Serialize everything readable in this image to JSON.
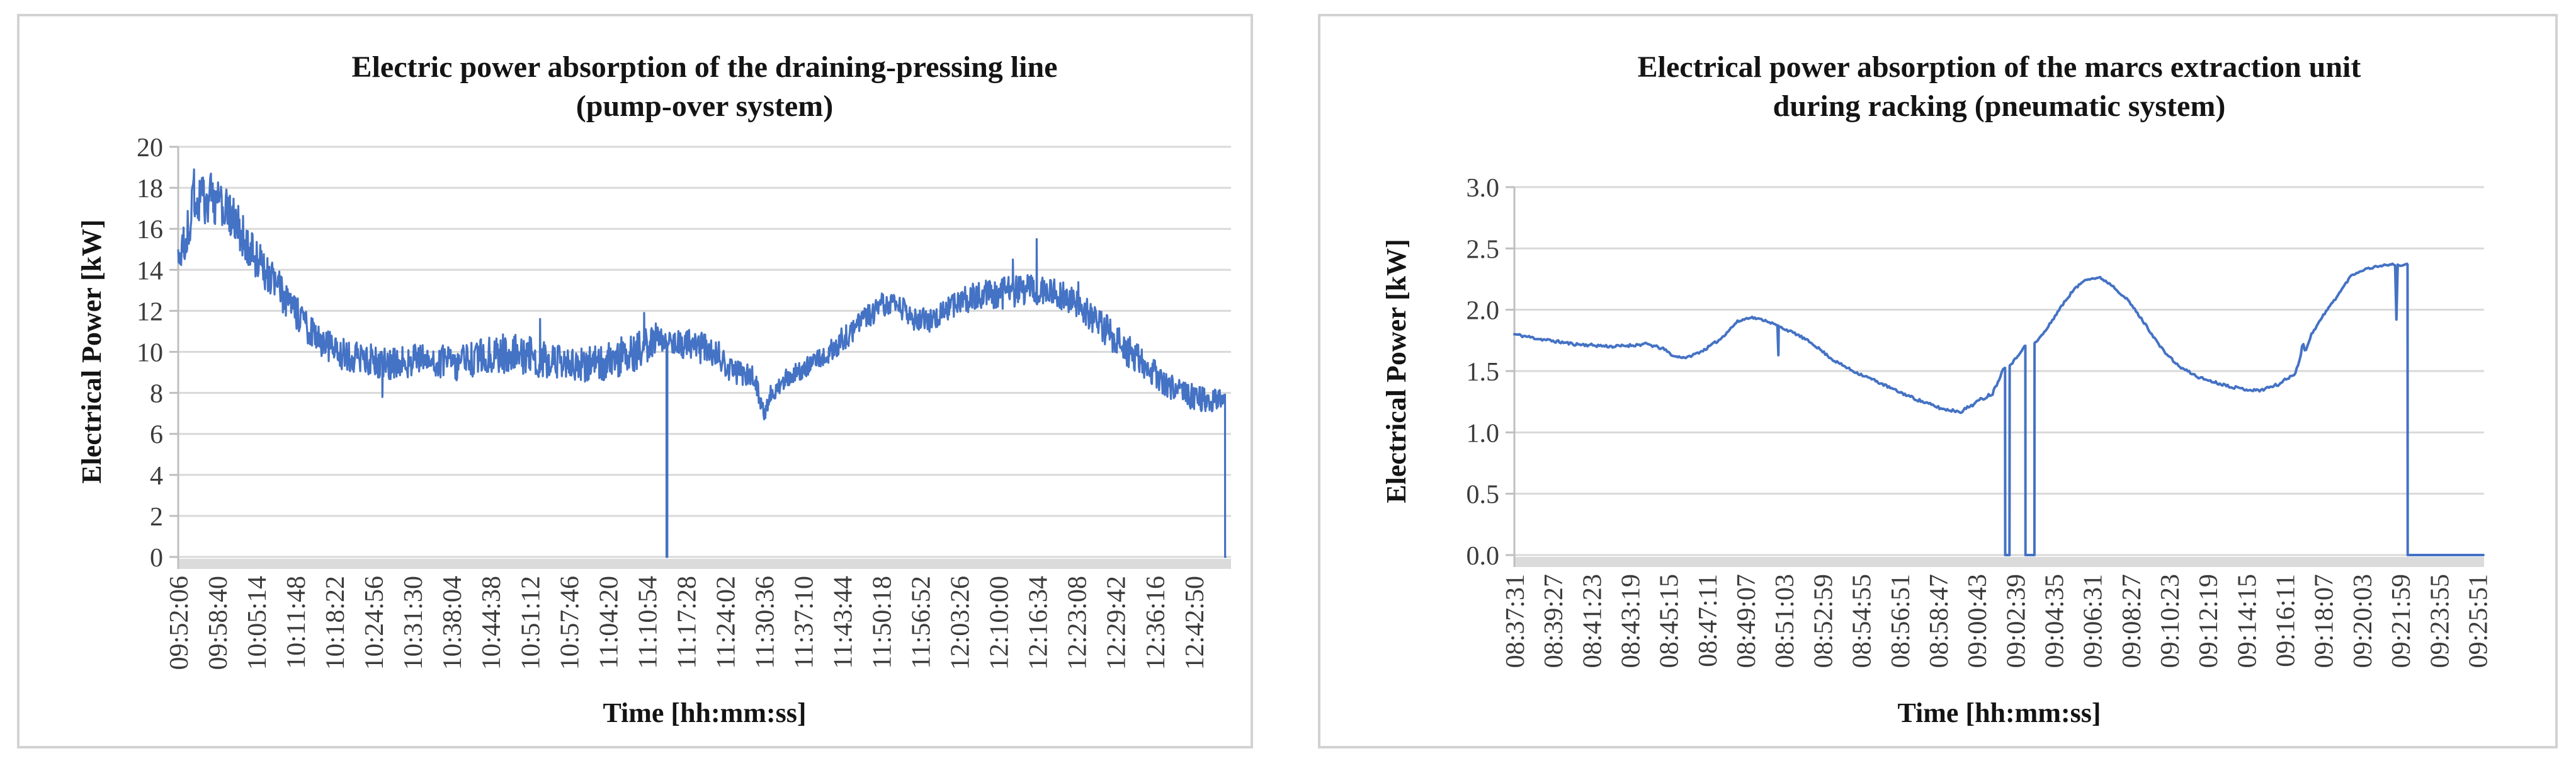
{
  "figure": {
    "background": "#ffffff",
    "panel_border_color": "#d2d2d2",
    "gridline_color": "#d9d9d9",
    "axis_color": "#bfbfbf",
    "axis_strip_color": "#dbdbdb",
    "line_color": "#4472C4"
  },
  "chart_data": [
    {
      "type": "line",
      "title_lines": [
        "Electric power absorption of the draining-pressing line",
        "(pump-over system)"
      ],
      "ylabel": "Electrical  Power [kW]",
      "xlabel": "Time [hh:mm:ss]",
      "ylim": [
        0,
        20
      ],
      "ytick_labels": [
        "0",
        "2",
        "4",
        "6",
        "8",
        "10",
        "12",
        "14",
        "16",
        "18",
        "20"
      ],
      "xtick_labels": [
        "09:52:06",
        "09:58:40",
        "10:05:14",
        "10:11:48",
        "10:18:22",
        "10:24:56",
        "10:31:30",
        "10:38:04",
        "10:44:38",
        "10:51:12",
        "10:57:46",
        "11:04:20",
        "11:10:54",
        "11:17:28",
        "11:24:02",
        "11:30:36",
        "11:37:10",
        "11:43:44",
        "11:50:18",
        "11:56:52",
        "12:03:26",
        "12:10:00",
        "12:16:34",
        "12:23:08",
        "12:29:42",
        "12:36:16",
        "12:42:50"
      ],
      "xtick_interval_s": 394,
      "x_range_s": [
        0,
        10620
      ],
      "data_end_s": 10564,
      "line_color": "#4472C4",
      "line_width": 3.2,
      "sample_step_s": 6,
      "seed": 20,
      "grid": true,
      "legend": "none",
      "trend": [
        [
          0,
          14.5,
          0.9
        ],
        [
          80,
          15.4,
          1.1
        ],
        [
          160,
          17.4,
          1.3
        ],
        [
          300,
          17.6,
          1.3
        ],
        [
          430,
          17.1,
          1.2
        ],
        [
          560,
          16.4,
          1.1
        ],
        [
          700,
          15.3,
          1.1
        ],
        [
          850,
          14.1,
          1.0
        ],
        [
          1000,
          13.2,
          0.9
        ],
        [
          1150,
          12.1,
          0.9
        ],
        [
          1350,
          10.9,
          0.8
        ],
        [
          1600,
          10.0,
          0.8
        ],
        [
          1900,
          9.6,
          0.8
        ],
        [
          2200,
          9.4,
          0.8
        ],
        [
          2500,
          9.7,
          0.8
        ],
        [
          2800,
          9.4,
          0.8
        ],
        [
          3100,
          9.8,
          0.9
        ],
        [
          3400,
          10.0,
          1.0
        ],
        [
          3700,
          9.6,
          0.9
        ],
        [
          4000,
          9.3,
          0.8
        ],
        [
          4300,
          9.5,
          0.9
        ],
        [
          4600,
          10.0,
          1.0
        ],
        [
          4850,
          10.7,
          0.8
        ],
        [
          4924,
          10.6,
          0.4
        ],
        [
          4936,
          10.5,
          0.4
        ],
        [
          5100,
          10.4,
          0.8
        ],
        [
          5300,
          10.2,
          0.8
        ],
        [
          5450,
          9.9,
          0.7
        ],
        [
          5560,
          9.1,
          0.6
        ],
        [
          5800,
          8.8,
          0.6
        ],
        [
          5875,
          7.6,
          0.4
        ],
        [
          5915,
          6.9,
          0.3
        ],
        [
          5965,
          7.9,
          0.5
        ],
        [
          6100,
          8.6,
          0.5
        ],
        [
          6300,
          9.2,
          0.5
        ],
        [
          6500,
          9.7,
          0.5
        ],
        [
          6700,
          10.6,
          0.6
        ],
        [
          6900,
          11.5,
          0.6
        ],
        [
          7100,
          12.3,
          0.6
        ],
        [
          7250,
          12.3,
          0.6
        ],
        [
          7400,
          11.7,
          0.6
        ],
        [
          7550,
          11.5,
          0.6
        ],
        [
          7750,
          12.1,
          0.6
        ],
        [
          7950,
          12.6,
          0.7
        ],
        [
          8150,
          12.8,
          0.7
        ],
        [
          8400,
          12.9,
          0.8
        ],
        [
          8650,
          13.1,
          0.8
        ],
        [
          8900,
          12.8,
          0.7
        ],
        [
          9100,
          12.2,
          0.7
        ],
        [
          9300,
          11.4,
          0.8
        ],
        [
          9500,
          10.4,
          0.8
        ],
        [
          9700,
          9.6,
          0.8
        ],
        [
          9900,
          8.8,
          0.8
        ],
        [
          10100,
          8.1,
          0.7
        ],
        [
          10300,
          7.7,
          0.6
        ],
        [
          10480,
          7.6,
          0.6
        ],
        [
          10558,
          7.9,
          0.4
        ]
      ],
      "spikes": [
        [
          160,
          18.9
        ],
        [
          250,
          18.5
        ],
        [
          2060,
          7.8
        ],
        [
          3650,
          11.6
        ],
        [
          4700,
          11.9
        ],
        [
          8420,
          14.5
        ],
        [
          8660,
          15.5
        ],
        [
          9080,
          13.4
        ]
      ],
      "zeros": [
        [
          4926,
          4934
        ],
        [
          10560,
          10564
        ]
      ]
    },
    {
      "type": "line",
      "title_lines": [
        "Electrical power absorption of the marcs extraction unit",
        "during racking (pneumatic system)"
      ],
      "ylabel": "Electrical Power [kW]",
      "xlabel": "Time [hh:mm:ss]",
      "ylim": [
        0,
        3
      ],
      "ytick_labels": [
        "0.0",
        "0.5",
        "1.0",
        "1.5",
        "2.0",
        "2.5",
        "3.0"
      ],
      "xtick_labels": [
        "08:37:31",
        "08:39:27",
        "08:41:23",
        "08:43:19",
        "08:45:15",
        "08:47:11",
        "08:49:07",
        "08:51:03",
        "08:52:59",
        "08:54:55",
        "08:56:51",
        "08:58:47",
        "09:00:43",
        "09:02:39",
        "09:04:35",
        "09:06:31",
        "09:08:27",
        "09:10:23",
        "09:12:19",
        "09:14:15",
        "09:16:11",
        "09:18:07",
        "09:20:03",
        "09:21:59",
        "09:23:55",
        "09:25:51"
      ],
      "xtick_interval_s": 116,
      "x_range_s": [
        0,
        2920
      ],
      "data_end_s": 2918,
      "line_color": "#4472C4",
      "line_width": 4,
      "sample_step_s": 4,
      "seed": 11,
      "grid": true,
      "legend": "none",
      "trend": [
        [
          0,
          1.8,
          0.012
        ],
        [
          80,
          1.76,
          0.012
        ],
        [
          180,
          1.72,
          0.012
        ],
        [
          300,
          1.7,
          0.012
        ],
        [
          400,
          1.72,
          0.012
        ],
        [
          450,
          1.68,
          0.01
        ],
        [
          480,
          1.62,
          0.008
        ],
        [
          520,
          1.61,
          0.008
        ],
        [
          570,
          1.67,
          0.01
        ],
        [
          620,
          1.76,
          0.01
        ],
        [
          670,
          1.9,
          0.01
        ],
        [
          710,
          1.94,
          0.008
        ],
        [
          760,
          1.91,
          0.008
        ],
        [
          800,
          1.86,
          0.008
        ],
        [
          850,
          1.8,
          0.01
        ],
        [
          900,
          1.72,
          0.01
        ],
        [
          960,
          1.59,
          0.01
        ],
        [
          1020,
          1.5,
          0.01
        ],
        [
          1080,
          1.43,
          0.01
        ],
        [
          1150,
          1.34,
          0.01
        ],
        [
          1220,
          1.26,
          0.012
        ],
        [
          1290,
          1.19,
          0.012
        ],
        [
          1345,
          1.17,
          0.012
        ],
        [
          1400,
          1.26,
          0.015
        ],
        [
          1440,
          1.32,
          0.015
        ],
        [
          1462,
          1.45,
          0.01
        ],
        [
          1474,
          1.53,
          0.008
        ],
        [
          1494,
          1.55,
          0.008
        ],
        [
          1515,
          1.62,
          0.008
        ],
        [
          1535,
          1.7,
          0.006
        ],
        [
          1569,
          1.73,
          0.008
        ],
        [
          1600,
          1.83,
          0.01
        ],
        [
          1640,
          2.0,
          0.01
        ],
        [
          1680,
          2.15,
          0.01
        ],
        [
          1720,
          2.25,
          0.008
        ],
        [
          1765,
          2.26,
          0.008
        ],
        [
          1800,
          2.2,
          0.01
        ],
        [
          1850,
          2.07,
          0.01
        ],
        [
          1900,
          1.88,
          0.01
        ],
        [
          1950,
          1.68,
          0.01
        ],
        [
          2000,
          1.54,
          0.01
        ],
        [
          2060,
          1.45,
          0.01
        ],
        [
          2120,
          1.4,
          0.01
        ],
        [
          2180,
          1.36,
          0.012
        ],
        [
          2240,
          1.34,
          0.012
        ],
        [
          2300,
          1.39,
          0.012
        ],
        [
          2350,
          1.48,
          0.012
        ],
        [
          2366,
          1.6,
          0.01
        ],
        [
          2374,
          1.73,
          0.01
        ],
        [
          2382,
          1.66,
          0.01
        ],
        [
          2400,
          1.8,
          0.01
        ],
        [
          2440,
          1.97,
          0.01
        ],
        [
          2480,
          2.12,
          0.01
        ],
        [
          2520,
          2.28,
          0.008
        ],
        [
          2560,
          2.33,
          0.008
        ],
        [
          2610,
          2.36,
          0.008
        ],
        [
          2645,
          2.37,
          0.006
        ],
        [
          2666,
          2.36,
          0.006
        ],
        [
          2688,
          2.37,
          0.005
        ]
      ],
      "spikes": [
        [
          795,
          1.63
        ],
        [
          2656,
          1.92
        ]
      ],
      "zeros": [
        [
          1478,
          1491
        ],
        [
          1539,
          1566
        ],
        [
          2690,
          2918
        ]
      ]
    }
  ]
}
